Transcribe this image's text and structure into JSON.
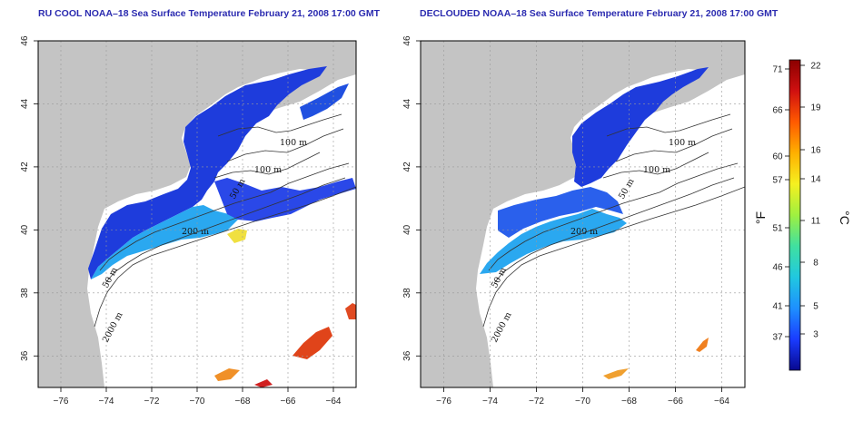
{
  "panels": [
    {
      "title": "RU COOL NOAA–18 Sea Surface Temperature February 21, 2008 17:00 GMT"
    },
    {
      "title": "DECLOUDED NOAA–18 Sea Surface Temperature February 21, 2008 17:00 GMT"
    }
  ],
  "axes": {
    "lon_ticks": [
      "−76",
      "−74",
      "−72",
      "−70",
      "−68",
      "−66",
      "−64"
    ],
    "lat_ticks": [
      "36",
      "38",
      "40",
      "42",
      "44",
      "46"
    ],
    "lon_range": [
      -77,
      -63
    ],
    "lat_range": [
      35,
      46
    ]
  },
  "contour_labels": [
    "100 m",
    "100 m",
    "50 m",
    "200 m",
    "50 m",
    "2000 m"
  ],
  "colorbar": {
    "f_label": "°F",
    "c_label": "°C",
    "f_ticks": [
      "71",
      "66",
      "60",
      "57",
      "51",
      "46",
      "41",
      "37"
    ],
    "c_ticks": [
      "22",
      "19",
      "16",
      "14",
      "11",
      "8",
      "5",
      "3"
    ],
    "colors": [
      "#08088f",
      "#1a3cff",
      "#1e90ff",
      "#20c8e0",
      "#40e0a0",
      "#9ff040",
      "#f5f020",
      "#ffb000",
      "#ff5a00",
      "#d01010",
      "#8b0000"
    ]
  },
  "colors": {
    "land": "#c4c4c4",
    "water": "#ffffff",
    "title": "#2b2bb0"
  }
}
